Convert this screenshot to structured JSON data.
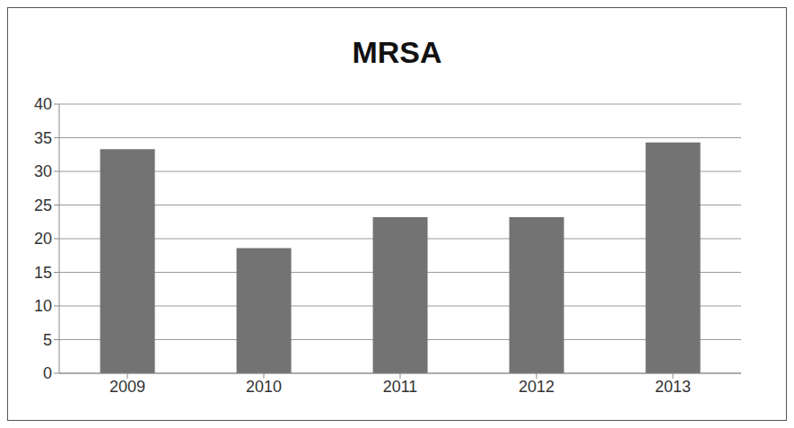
{
  "chart_data": {
    "type": "bar",
    "title": "MRSA",
    "categories": [
      "2009",
      "2010",
      "2011",
      "2012",
      "2013"
    ],
    "values": [
      33.3,
      18.6,
      23.2,
      23.2,
      34.3
    ],
    "color": "#737373",
    "ylim": [
      0,
      40
    ],
    "yticks": [
      0,
      5,
      10,
      15,
      20,
      25,
      30,
      35,
      40
    ],
    "grid": true
  }
}
